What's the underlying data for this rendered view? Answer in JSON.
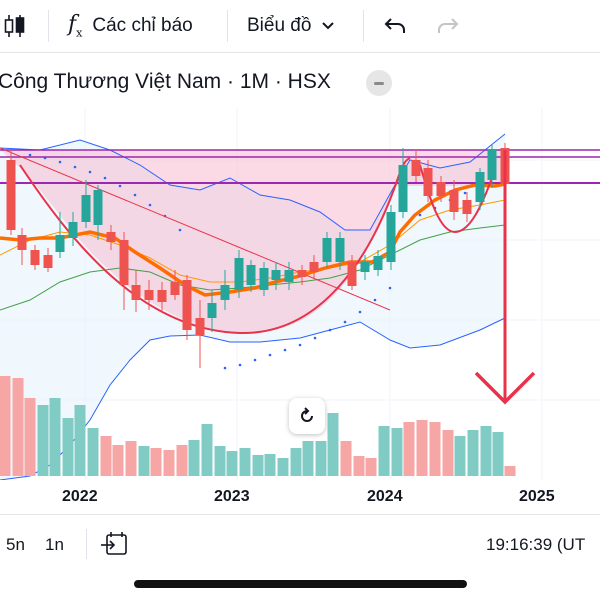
{
  "toolbar": {
    "indicators_label": "Các chỉ báo",
    "chart_type_label": "Biểu đồ",
    "icons": [
      "candles-icon",
      "fx-icon",
      "chevron-down-icon",
      "undo-icon",
      "redo-icon"
    ]
  },
  "symbol": {
    "title": "Công Thương Việt Nam · 1M · HSX"
  },
  "xaxis": {
    "labels": [
      "2022",
      "2023",
      "2024",
      "2025"
    ]
  },
  "bottom": {
    "range_5y": "5n",
    "range_1y": "1n",
    "time": "19:16:39 (UT"
  },
  "colors": {
    "up": "#26a69a",
    "down": "#ef5350",
    "bollinger": "#2962ff",
    "annotation_red": "#e8324a",
    "resistance_purple": "#9c27b0",
    "sma_orange": "#ff6d00"
  }
}
